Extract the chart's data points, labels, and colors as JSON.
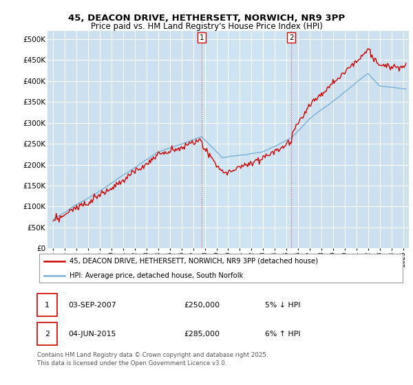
{
  "title_line1": "45, DEACON DRIVE, HETHERSETT, NORWICH, NR9 3PP",
  "title_line2": "Price paid vs. HM Land Registry's House Price Index (HPI)",
  "bg_color": "#cce0f0",
  "shade_color": "#b8d4eb",
  "line1_color": "#cc0000",
  "line2_color": "#7ab0d4",
  "ann_line_color": "#cc3333",
  "annotation1": {
    "label": "1",
    "x": 2007.75,
    "date": "03-SEP-2007",
    "price": "£250,000",
    "pct": "5% ↓ HPI"
  },
  "annotation2": {
    "label": "2",
    "x": 2015.42,
    "date": "04-JUN-2015",
    "price": "£285,000",
    "pct": "6% ↑ HPI"
  },
  "ylim": [
    0,
    520000
  ],
  "yticks": [
    0,
    50000,
    100000,
    150000,
    200000,
    250000,
    300000,
    350000,
    400000,
    450000,
    500000
  ],
  "xlim": [
    1994.5,
    2025.5
  ],
  "xticks": [
    1995,
    1996,
    1997,
    1998,
    1999,
    2000,
    2001,
    2002,
    2003,
    2004,
    2005,
    2006,
    2007,
    2008,
    2009,
    2010,
    2011,
    2012,
    2013,
    2014,
    2015,
    2016,
    2017,
    2018,
    2019,
    2020,
    2021,
    2022,
    2023,
    2024,
    2025
  ],
  "legend_label1": "45, DEACON DRIVE, HETHERSETT, NORWICH, NR9 3PP (detached house)",
  "legend_label2": "HPI: Average price, detached house, South Norfolk",
  "footer": "Contains HM Land Registry data © Crown copyright and database right 2025.\nThis data is licensed under the Open Government Licence v3.0."
}
